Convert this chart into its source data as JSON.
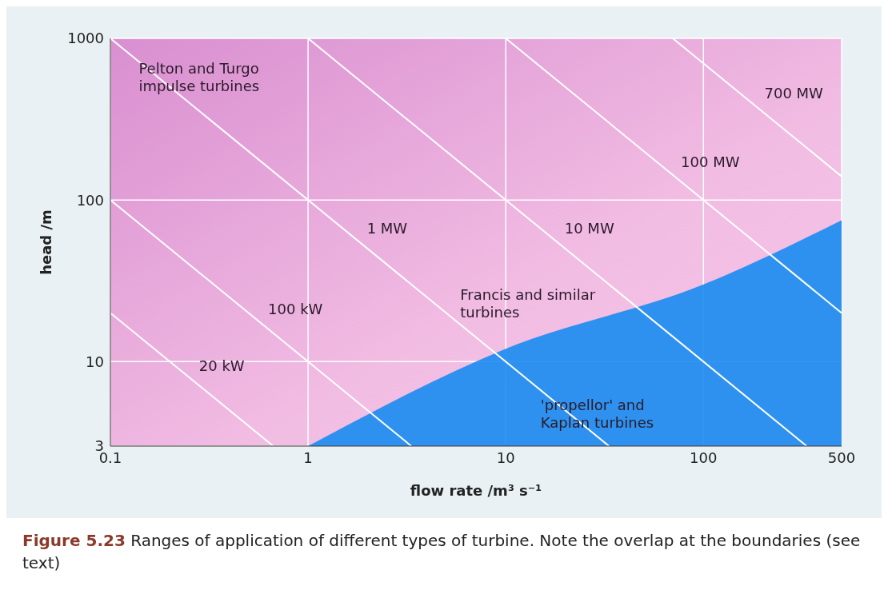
{
  "chart_data": {
    "type": "line",
    "xlabel": "flow rate /m³ s⁻¹",
    "ylabel": "head /m",
    "log": "xy",
    "grid": true,
    "marker": "none",
    "line_style": "solid",
    "xlim": [
      0.1,
      500
    ],
    "xticks": [
      0.1,
      1,
      10,
      100,
      500
    ],
    "ylim": [
      3,
      1000
    ],
    "yticks": [
      3,
      10,
      100,
      1000
    ],
    "series": [
      {
        "type": "area",
        "color": "#1a8cf0",
        "x": [
          1,
          10,
          100,
          500
        ],
        "values": [
          3,
          12,
          30,
          75
        ]
      },
      {
        "name": "20 kW",
        "color": "#ffffff",
        "x": [
          0.1,
          0.667
        ],
        "values": [
          20,
          3
        ]
      },
      {
        "name": "100 kW",
        "color": "#ffffff",
        "x": [
          0.1,
          3.33
        ],
        "values": [
          100,
          3
        ]
      },
      {
        "name": "1 MW",
        "color": "#ffffff",
        "x": [
          0.1,
          33.3
        ],
        "values": [
          1000,
          3
        ]
      },
      {
        "name": "10 MW",
        "color": "#ffffff",
        "x": [
          1,
          333
        ],
        "values": [
          1000,
          3
        ]
      },
      {
        "name": "100 MW",
        "color": "#ffffff",
        "x": [
          10,
          500
        ],
        "values": [
          1000,
          20
        ]
      },
      {
        "name": "700 MW",
        "color": "#ffffff",
        "x": [
          70,
          500
        ],
        "values": [
          1000,
          140
        ]
      }
    ],
    "annotations": [
      "Pelton and Turgo\nimpulse turbines",
      "Francis and similar\nturbines",
      "'propellor' and\nKaplan turbines",
      "Figure 5.23 Ranges of application of different types of turbine. Note the overlap at the boundaries (see text)"
    ]
  }
}
